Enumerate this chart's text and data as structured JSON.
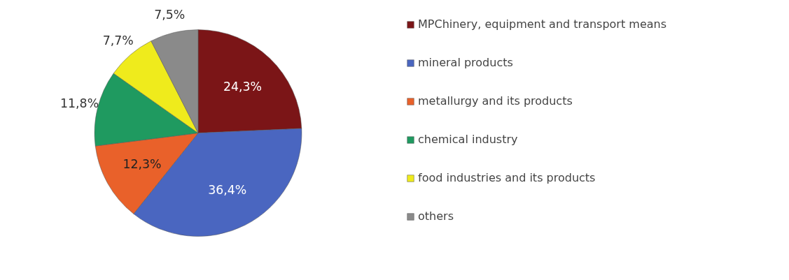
{
  "chart_data": {
    "type": "pie",
    "categories": [
      "MPChinery, equipment and transport means",
      "mineral products",
      "metallurgy and its products",
      "chemical industry",
      "food industries and its products",
      "others"
    ],
    "values": [
      24.3,
      36.4,
      12.3,
      11.8,
      7.7,
      7.5
    ],
    "colors": [
      "#7b1517",
      "#4a66c0",
      "#e9612a",
      "#1f9a60",
      "#efeb1c",
      "#8a8a8a"
    ],
    "value_labels": [
      "24,3%",
      "36,4%",
      "12,3%",
      "11,8%",
      "7,7%",
      "7,5%"
    ],
    "legend": "right"
  }
}
